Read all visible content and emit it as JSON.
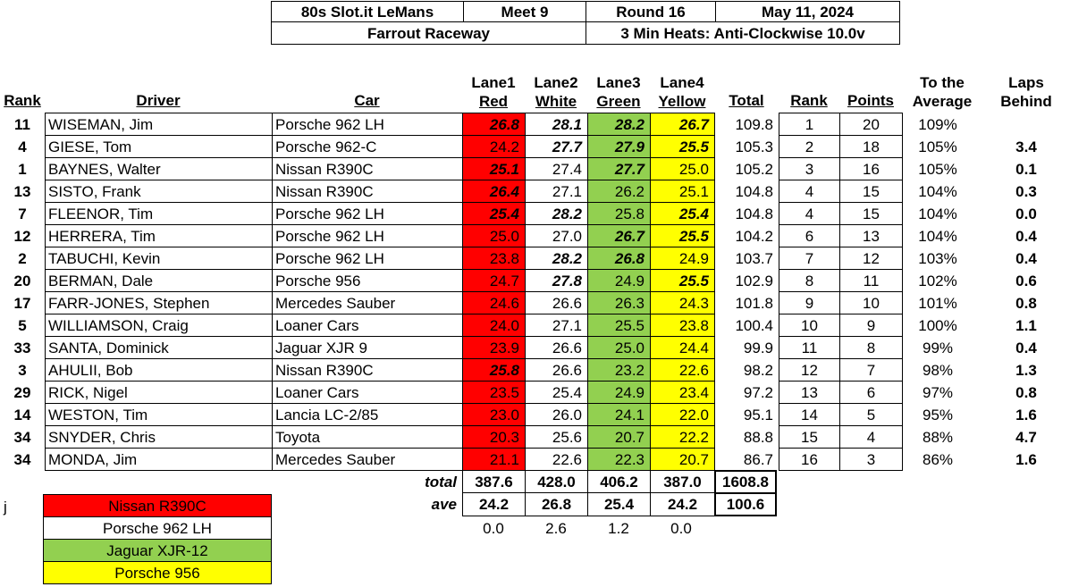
{
  "header": {
    "series": "80s Slot.it LeMans",
    "meet": "Meet 9",
    "round": "Round 16",
    "date": "May 11, 2024",
    "track": "Farrout Raceway",
    "format": "3 Min Heats: Anti-Clockwise 10.0v"
  },
  "columns": {
    "rank": "Rank",
    "driver": "Driver",
    "car": "Car",
    "lane1_top": "Lane1",
    "lane1_bot": "Red",
    "lane2_top": "Lane2",
    "lane2_bot": "White",
    "lane3_top": "Lane3",
    "lane3_bot": "Green",
    "lane4_top": "Lane4",
    "lane4_bot": "Yellow",
    "total": "Total",
    "rank2": "Rank",
    "points": "Points",
    "avg_top": "To the",
    "avg_bot": "Average",
    "laps_top": "Laps",
    "laps_bot": "Behind"
  },
  "rows": [
    {
      "rank": "11",
      "driver": "WISEMAN, Jim",
      "car": "Porsche 962 LH",
      "l1": "26.8",
      "l2": "28.1",
      "l3": "28.2",
      "l4": "26.7",
      "b1": true,
      "b2": true,
      "b3": true,
      "b4": true,
      "total": "109.8",
      "pos": "1",
      "points": "20",
      "avg": "109%",
      "behind": ""
    },
    {
      "rank": "4",
      "driver": "GIESE, Tom",
      "car": "Porsche 962-C",
      "l1": "24.2",
      "l2": "27.7",
      "l3": "27.9",
      "l4": "25.5",
      "b1": false,
      "b2": true,
      "b3": true,
      "b4": true,
      "total": "105.3",
      "pos": "2",
      "points": "18",
      "avg": "105%",
      "behind": "3.4"
    },
    {
      "rank": "1",
      "driver": "BAYNES, Walter",
      "car": "Nissan R390C",
      "l1": "25.1",
      "l2": "27.4",
      "l3": "27.7",
      "l4": "25.0",
      "b1": true,
      "b2": false,
      "b3": true,
      "b4": false,
      "total": "105.2",
      "pos": "3",
      "points": "16",
      "avg": "105%",
      "behind": "0.1"
    },
    {
      "rank": "13",
      "driver": "SISTO, Frank",
      "car": "Nissan R390C",
      "l1": "26.4",
      "l2": "27.1",
      "l3": "26.2",
      "l4": "25.1",
      "b1": true,
      "b2": false,
      "b3": false,
      "b4": false,
      "total": "104.8",
      "pos": "4",
      "points": "15",
      "avg": "104%",
      "behind": "0.3"
    },
    {
      "rank": "7",
      "driver": "FLEENOR, Tim",
      "car": "Porsche 962 LH",
      "l1": "25.4",
      "l2": "28.2",
      "l3": "25.8",
      "l4": "25.4",
      "b1": true,
      "b2": true,
      "b3": false,
      "b4": true,
      "total": "104.8",
      "pos": "4",
      "points": "15",
      "avg": "104%",
      "behind": "0.0"
    },
    {
      "rank": "12",
      "driver": "HERRERA, Tim",
      "car": "Porsche 962 LH",
      "l1": "25.0",
      "l2": "27.0",
      "l3": "26.7",
      "l4": "25.5",
      "b1": false,
      "b2": false,
      "b3": true,
      "b4": true,
      "total": "104.2",
      "pos": "6",
      "points": "13",
      "avg": "104%",
      "behind": "0.4"
    },
    {
      "rank": "2",
      "driver": "TABUCHI, Kevin",
      "car": "Porsche 962 LH",
      "l1": "23.8",
      "l2": "28.2",
      "l3": "26.8",
      "l4": "24.9",
      "b1": false,
      "b2": true,
      "b3": true,
      "b4": false,
      "total": "103.7",
      "pos": "7",
      "points": "12",
      "avg": "103%",
      "behind": "0.4"
    },
    {
      "rank": "20",
      "driver": "BERMAN, Dale",
      "car": "Porsche 956",
      "l1": "24.7",
      "l2": "27.8",
      "l3": "24.9",
      "l4": "25.5",
      "b1": false,
      "b2": true,
      "b3": false,
      "b4": true,
      "total": "102.9",
      "pos": "8",
      "points": "11",
      "avg": "102%",
      "behind": "0.6"
    },
    {
      "rank": "17",
      "driver": "FARR-JONES, Stephen",
      "car": "Mercedes Sauber",
      "l1": "24.6",
      "l2": "26.6",
      "l3": "26.3",
      "l4": "24.3",
      "b1": false,
      "b2": false,
      "b3": false,
      "b4": false,
      "total": "101.8",
      "pos": "9",
      "points": "10",
      "avg": "101%",
      "behind": "0.8"
    },
    {
      "rank": "5",
      "driver": "WILLIAMSON, Craig",
      "car": "Loaner Cars",
      "l1": "24.0",
      "l2": "27.1",
      "l3": "25.5",
      "l4": "23.8",
      "b1": false,
      "b2": false,
      "b3": false,
      "b4": false,
      "total": "100.4",
      "pos": "10",
      "points": "9",
      "avg": "100%",
      "behind": "1.1"
    },
    {
      "rank": "33",
      "driver": "SANTA, Dominick",
      "car": "Jaguar XJR 9",
      "l1": "23.9",
      "l2": "26.6",
      "l3": "25.0",
      "l4": "24.4",
      "b1": false,
      "b2": false,
      "b3": false,
      "b4": false,
      "total": "99.9",
      "pos": "11",
      "points": "8",
      "avg": "99%",
      "behind": "0.4"
    },
    {
      "rank": "3",
      "driver": "AHULII, Bob",
      "car": "Nissan R390C",
      "l1": "25.8",
      "l2": "26.6",
      "l3": "23.2",
      "l4": "22.6",
      "b1": true,
      "b2": false,
      "b3": false,
      "b4": false,
      "total": "98.2",
      "pos": "12",
      "points": "7",
      "avg": "98%",
      "behind": "1.3"
    },
    {
      "rank": "29",
      "driver": "RICK, Nigel",
      "car": "Loaner Cars",
      "l1": "23.5",
      "l2": "25.4",
      "l3": "24.9",
      "l4": "23.4",
      "b1": false,
      "b2": false,
      "b3": false,
      "b4": false,
      "total": "97.2",
      "pos": "13",
      "points": "6",
      "avg": "97%",
      "behind": "0.8"
    },
    {
      "rank": "14",
      "driver": "WESTON, Tim",
      "car": "Lancia LC-2/85",
      "l1": "23.0",
      "l2": "26.0",
      "l3": "24.1",
      "l4": "22.0",
      "b1": false,
      "b2": false,
      "b3": false,
      "b4": false,
      "total": "95.1",
      "pos": "14",
      "points": "5",
      "avg": "95%",
      "behind": "1.6"
    },
    {
      "rank": "34",
      "driver": "SNYDER, Chris",
      "car": "Toyota",
      "l1": "20.3",
      "l2": "25.6",
      "l3": "20.7",
      "l4": "22.2",
      "b1": false,
      "b2": false,
      "b3": false,
      "b4": false,
      "total": "88.8",
      "pos": "15",
      "points": "4",
      "avg": "88%",
      "behind": "4.7"
    },
    {
      "rank": "34",
      "driver": "MONDA, Jim",
      "car": "Mercedes Sauber",
      "l1": "21.1",
      "l2": "22.6",
      "l3": "22.3",
      "l4": "20.7",
      "b1": false,
      "b2": false,
      "b3": false,
      "b4": false,
      "total": "86.7",
      "pos": "16",
      "points": "3",
      "avg": "86%",
      "behind": "1.6"
    }
  ],
  "totals": {
    "label": "total",
    "l1": "387.6",
    "l2": "428.0",
    "l3": "406.2",
    "l4": "387.0",
    "sum": "1608.8"
  },
  "averages": {
    "label": "ave",
    "l1": "24.2",
    "l2": "26.8",
    "l3": "25.4",
    "l4": "24.2",
    "sum": "100.6"
  },
  "deltas": {
    "l1": "0.0",
    "l2": "2.6",
    "l3": "1.2",
    "l4": "0.0"
  },
  "marker": "j",
  "legend": [
    {
      "label": "Nissan R390C",
      "color": "#ff0000"
    },
    {
      "label": "Porsche 962 LH",
      "color": "#ffffff"
    },
    {
      "label": "Jaguar XJR-12",
      "color": "#92d050"
    },
    {
      "label": "Porsche 956",
      "color": "#ffff00"
    }
  ],
  "colors": {
    "red": "#ff0000",
    "green": "#92d050",
    "yellow": "#ffff00"
  }
}
